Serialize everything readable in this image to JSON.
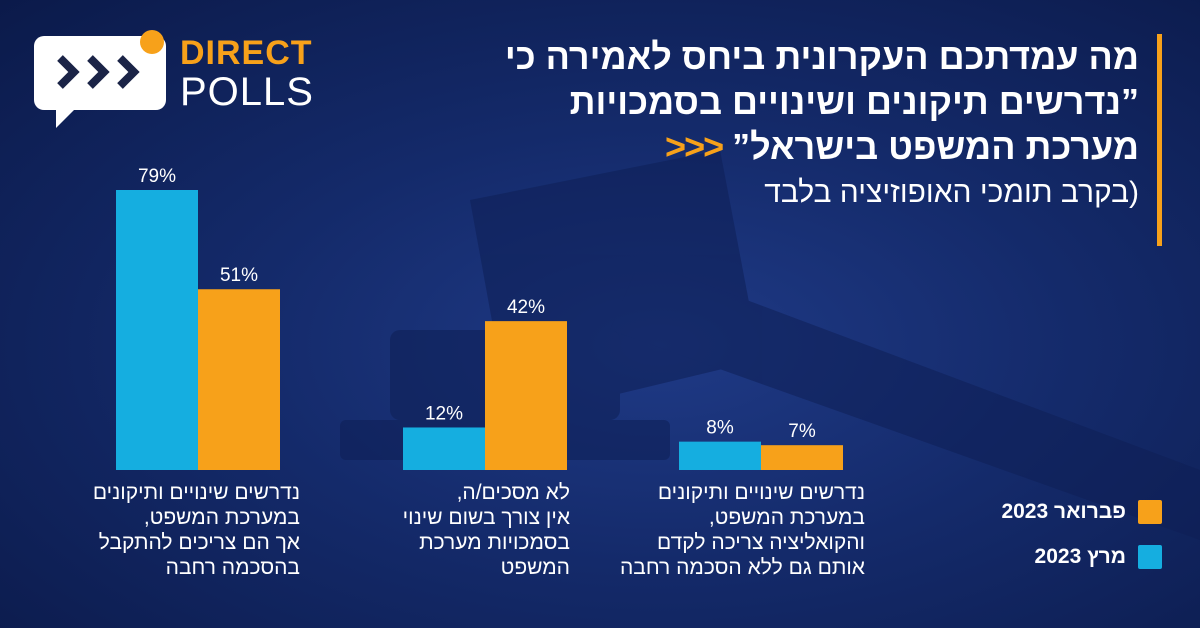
{
  "logo": {
    "word1": "DIRECT",
    "word2": "POLLS"
  },
  "title": {
    "text": "מה עמדתכם העקרונית ביחס לאמירה כי ”נדרשים תיקונים ושינויים בסמכויות מערכת המשפט בישראל”",
    "arrows": "<<<",
    "subtitle": "(בקרב תומכי האופוזיציה בלבד"
  },
  "colors": {
    "february": "#f7a11a",
    "march": "#15aee0",
    "accent": "#f7a11a"
  },
  "legend": [
    {
      "label": "פברואר 2023",
      "color": "#f7a11a"
    },
    {
      "label": "מרץ 2023",
      "color": "#15aee0"
    }
  ],
  "chart_data": {
    "type": "bar",
    "categories": [
      "נדרשים שינויים ותיקונים במערכת המשפט, אך הם צריכים להתקבל בהסכמה רחבה",
      "לא מסכים/ה, אין צורך בשום שינוי בסמכויות מערכת המשפט",
      "נדרשים שינויים ותיקונים במערכת המשפט, והקואליציה צריכה לקדם אותם גם ללא הסכמה רחבה"
    ],
    "category_lines": [
      [
        "נדרשים שינויים ותיקונים",
        "במערכת המשפט,",
        "אך הם צריכים להתקבל",
        "בהסכמה רחבה"
      ],
      [
        "לא מסכים/ה,",
        "אין צורך בשום שינוי",
        "בסמכויות מערכת",
        "המשפט"
      ],
      [
        "נדרשים שינויים ותיקונים",
        "במערכת המשפט,",
        "והקואליציה צריכה לקדם",
        "אותם גם ללא הסכמה רחבה"
      ]
    ],
    "series": [
      {
        "name": "מרץ 2023",
        "values": [
          79,
          12,
          8
        ],
        "labels": [
          "79%",
          "12%",
          "8%"
        ],
        "color": "#15aee0"
      },
      {
        "name": "פברואר 2023",
        "values": [
          51,
          42,
          7
        ],
        "labels": [
          "51%",
          "42%",
          "7%"
        ],
        "color": "#f7a11a"
      }
    ],
    "ylim": [
      0,
      100
    ],
    "grid": false,
    "legend_position": "bottom-right"
  }
}
